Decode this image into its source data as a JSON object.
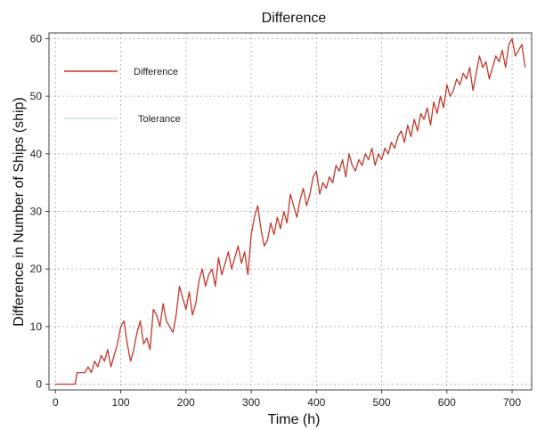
{
  "chart_data": {
    "type": "line",
    "title": "Difference",
    "xlabel": "Time (h)",
    "ylabel": "Difference in Number of Ships (ship)",
    "xlim": [
      -10,
      730
    ],
    "ylim": [
      -1,
      61
    ],
    "xticks": [
      0,
      100,
      200,
      300,
      400,
      500,
      600,
      700
    ],
    "yticks": [
      0,
      10,
      20,
      30,
      40,
      50,
      60
    ],
    "grid": true,
    "legend_position": "top-left",
    "series": [
      {
        "name": "Difference",
        "color": "#c0392b",
        "x": [
          0,
          30,
          33,
          45,
          50,
          55,
          60,
          65,
          70,
          75,
          80,
          85,
          90,
          95,
          100,
          105,
          110,
          115,
          120,
          125,
          130,
          135,
          140,
          145,
          150,
          155,
          160,
          165,
          170,
          175,
          180,
          185,
          190,
          195,
          200,
          205,
          210,
          215,
          220,
          225,
          230,
          235,
          240,
          245,
          250,
          255,
          260,
          265,
          270,
          275,
          280,
          285,
          290,
          295,
          300,
          305,
          310,
          315,
          320,
          325,
          330,
          335,
          340,
          345,
          350,
          355,
          360,
          365,
          370,
          375,
          380,
          385,
          390,
          395,
          400,
          405,
          410,
          415,
          420,
          425,
          430,
          435,
          440,
          445,
          450,
          455,
          460,
          465,
          470,
          475,
          480,
          485,
          490,
          495,
          500,
          505,
          510,
          515,
          520,
          525,
          530,
          535,
          540,
          545,
          550,
          555,
          560,
          565,
          570,
          575,
          580,
          585,
          590,
          595,
          600,
          605,
          610,
          615,
          620,
          625,
          630,
          635,
          640,
          645,
          650,
          655,
          660,
          665,
          670,
          675,
          680,
          685,
          690,
          695,
          700,
          705,
          710,
          715,
          720
        ],
        "y": [
          0,
          0,
          2,
          2,
          3,
          2,
          4,
          3,
          5,
          4,
          6,
          3,
          5,
          7,
          10,
          11,
          7,
          4,
          6,
          9,
          11,
          7,
          8,
          6,
          13,
          12,
          10,
          14,
          11,
          10,
          9,
          12,
          17,
          15,
          13,
          16,
          12,
          14,
          18,
          20,
          17,
          19,
          20,
          17,
          22,
          19,
          21,
          23,
          20,
          22,
          24,
          21,
          23,
          19,
          26,
          29,
          31,
          27,
          24,
          25,
          28,
          26,
          29,
          27,
          30,
          28,
          33,
          31,
          29,
          32,
          34,
          31,
          33,
          36,
          37,
          33,
          35,
          34,
          36,
          35,
          38,
          37,
          39,
          36,
          40,
          38,
          37,
          39,
          38,
          40,
          39,
          41,
          38,
          40,
          39,
          41,
          40,
          42,
          41,
          43,
          44,
          42,
          45,
          43,
          46,
          44,
          47,
          46,
          48,
          45,
          49,
          47,
          50,
          48,
          52,
          50,
          51,
          53,
          52,
          54,
          53,
          55,
          51,
          54,
          57,
          55,
          56,
          53,
          55,
          57,
          56,
          58,
          55,
          59,
          60,
          57,
          58,
          59,
          55
        ]
      },
      {
        "name": "Tolerance",
        "color": "#c8e4ea",
        "x": [],
        "y": []
      }
    ]
  }
}
